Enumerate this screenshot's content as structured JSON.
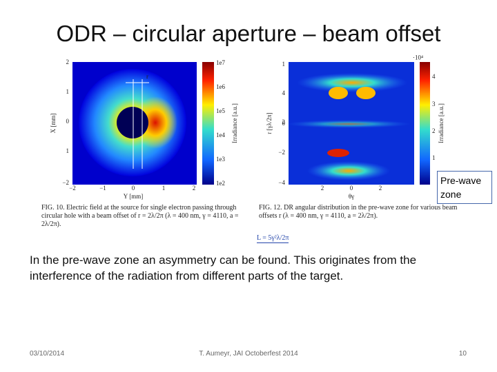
{
  "title": "ODR – circular aperture – beam offset",
  "figure_left": {
    "offset_label": "r",
    "x_label": "Y [mm]",
    "y_label": "X [mm]",
    "x_ticks": [
      "−2",
      "−1",
      "0",
      "1",
      "2"
    ],
    "y_ticks": [
      "2",
      "1",
      "0",
      "1",
      "−2"
    ],
    "colorbar_label": "Irradiance [a.u.]",
    "colorbar_ticks": [
      "1e7",
      "1e6",
      "1e5",
      "1e4",
      "1e3",
      "1e2"
    ],
    "caption": "FIG. 10. Electric field at the source for single electron passing through circular hole with a beam offset of r = 2λ/2π (λ = 400 nm, γ = 4110, a = 2λ/2π)."
  },
  "figure_right": {
    "x_label": "θγ",
    "y_label": "r [γλ/2π]",
    "x_ticks": [
      "2",
      "0",
      "2"
    ],
    "y_ticks": [
      "4",
      "2",
      "0",
      "−2",
      "−4"
    ],
    "top_left_tick": "1",
    "colorbar_exponent": "·10⁴",
    "colorbar_label": "Irradiance [a.u.]",
    "colorbar_ticks": [
      "4",
      "3",
      "2",
      "1"
    ],
    "caption": "FIG. 12. DR angular distribution in the pre-wave zone for various beam offsets r (λ = 400 nm, γ = 4110, a = 2λ/2π).",
    "annotation": "L = 5γ²λ/2π"
  },
  "callout": "Pre-wave zone",
  "body": "In the pre-wave zone an asymmetry can be found. This originates from the interference of the radiation from different parts of the target.",
  "footer": {
    "date": "03/10/2014",
    "author": "T. Aumeyr, JAI Octoberfest 2014",
    "page": "10"
  }
}
